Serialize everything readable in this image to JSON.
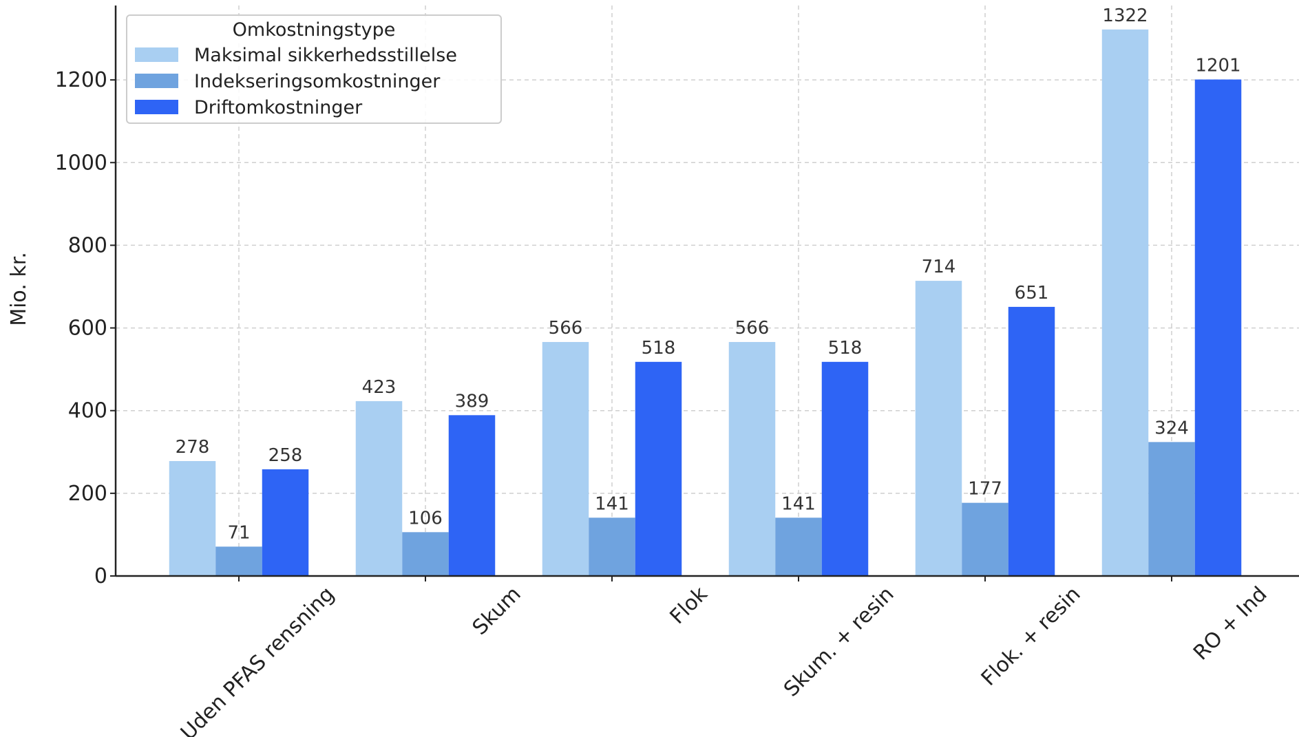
{
  "chart_data": {
    "type": "bar",
    "title": "",
    "xlabel": "",
    "ylabel": "Mio. kr.",
    "ylim": [
      0,
      1380
    ],
    "yticks": [
      0,
      200,
      400,
      600,
      800,
      1000,
      1200
    ],
    "grid": true,
    "legend": {
      "title": "Omkostningstype",
      "position": "top-left"
    },
    "categories": [
      "Uden PFAS rensning",
      "Skum",
      "Flok",
      "Skum. + resin",
      "Flok. + resin",
      "RO + Ind"
    ],
    "series": [
      {
        "name": "Maksimal sikkerhedsstillelse",
        "color": "#A9CFF2",
        "values": [
          278,
          423,
          566,
          566,
          714,
          1322
        ]
      },
      {
        "name": "Indekseringsomkostninger",
        "color": "#6FA3DF",
        "values": [
          71,
          106,
          141,
          141,
          177,
          324
        ]
      },
      {
        "name": "Driftomkostninger",
        "color": "#2E64F5",
        "values": [
          258,
          389,
          518,
          518,
          651,
          1201
        ]
      }
    ]
  }
}
